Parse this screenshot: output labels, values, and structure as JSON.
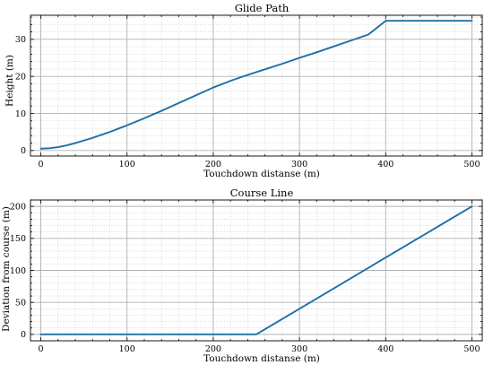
{
  "chart_data": [
    {
      "type": "line",
      "title": "Glide Path",
      "xlabel": "Touchdown distanse (m)",
      "ylabel": "Height (m)",
      "xlim": [
        -12,
        512
      ],
      "ylim": [
        -1.5,
        36.5
      ],
      "xticks": [
        0,
        100,
        200,
        300,
        400,
        500
      ],
      "yticks": [
        0,
        10,
        20,
        30
      ],
      "xminor_step": 20,
      "yminor_step": 2,
      "grid": true,
      "color": "#1f6fa5",
      "x": [
        0,
        10,
        20,
        30,
        40,
        50,
        60,
        70,
        80,
        90,
        100,
        120,
        140,
        160,
        180,
        200,
        220,
        240,
        260,
        280,
        300,
        320,
        340,
        360,
        380,
        400,
        420,
        440,
        460,
        480,
        500
      ],
      "y": [
        0.5,
        0.6,
        0.9,
        1.4,
        2.0,
        2.7,
        3.4,
        4.2,
        5.0,
        5.9,
        6.8,
        8.7,
        10.7,
        12.8,
        14.9,
        17.0,
        18.8,
        20.4,
        21.9,
        23.4,
        25.0,
        26.5,
        28.1,
        29.7,
        31.3,
        35.0,
        35.0,
        35.0,
        35.0,
        35.0,
        35.0
      ]
    },
    {
      "type": "line",
      "title": "Course Line",
      "xlabel": "Touchdown distanse (m)",
      "ylabel": "Deviation from course (m)",
      "xlim": [
        -12,
        512
      ],
      "ylim": [
        -10,
        210
      ],
      "xticks": [
        0,
        100,
        200,
        300,
        400,
        500
      ],
      "yticks": [
        0,
        50,
        100,
        150,
        200
      ],
      "xminor_step": 20,
      "yminor_step": 10,
      "grid": true,
      "color": "#1f6fa5",
      "x": [
        0,
        50,
        100,
        150,
        200,
        250,
        300,
        350,
        400,
        450,
        500
      ],
      "y": [
        0,
        0,
        0,
        0,
        0,
        0,
        40,
        80,
        120,
        160,
        200
      ]
    }
  ]
}
